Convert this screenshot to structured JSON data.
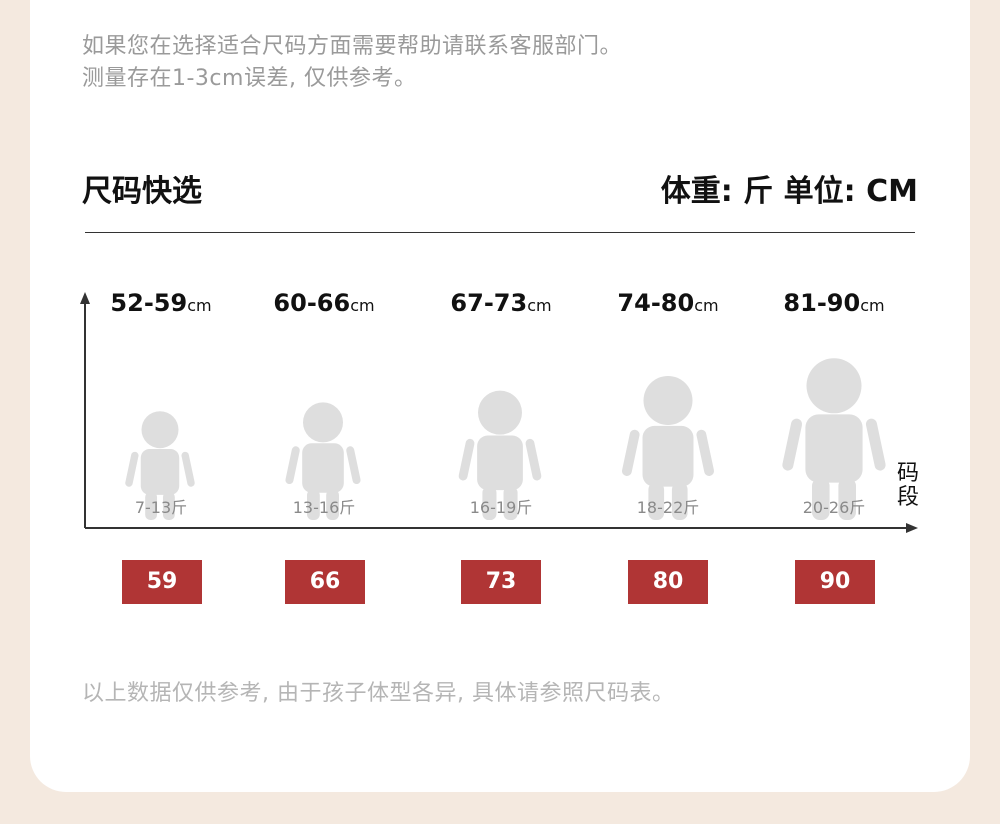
{
  "notes": {
    "line1": "如果您在选择适合尺码方面需要帮助请联系客服部门。",
    "line2": "测量存在1-3cm误差, 仅供参考。",
    "footer": "以上数据仅供参考, 由于孩子体型各异, 具体请参照尺码表。"
  },
  "header": {
    "title": "尺码快选",
    "units": "体重: 斤  单位: CM"
  },
  "axis": {
    "y_label": "码段"
  },
  "unit_suffix": "cm",
  "sizes": [
    {
      "range": "52-59",
      "weight": "7-13斤",
      "code": "59"
    },
    {
      "range": "60-66",
      "weight": "13-16斤",
      "code": "66"
    },
    {
      "range": "67-73",
      "weight": "16-19斤",
      "code": "73"
    },
    {
      "range": "74-80",
      "weight": "18-22斤",
      "code": "80"
    },
    {
      "range": "81-90",
      "weight": "20-26斤",
      "code": "90"
    }
  ],
  "colors": {
    "badge": "#b03535",
    "figure": "#dedede",
    "background": "#f4e9df"
  }
}
